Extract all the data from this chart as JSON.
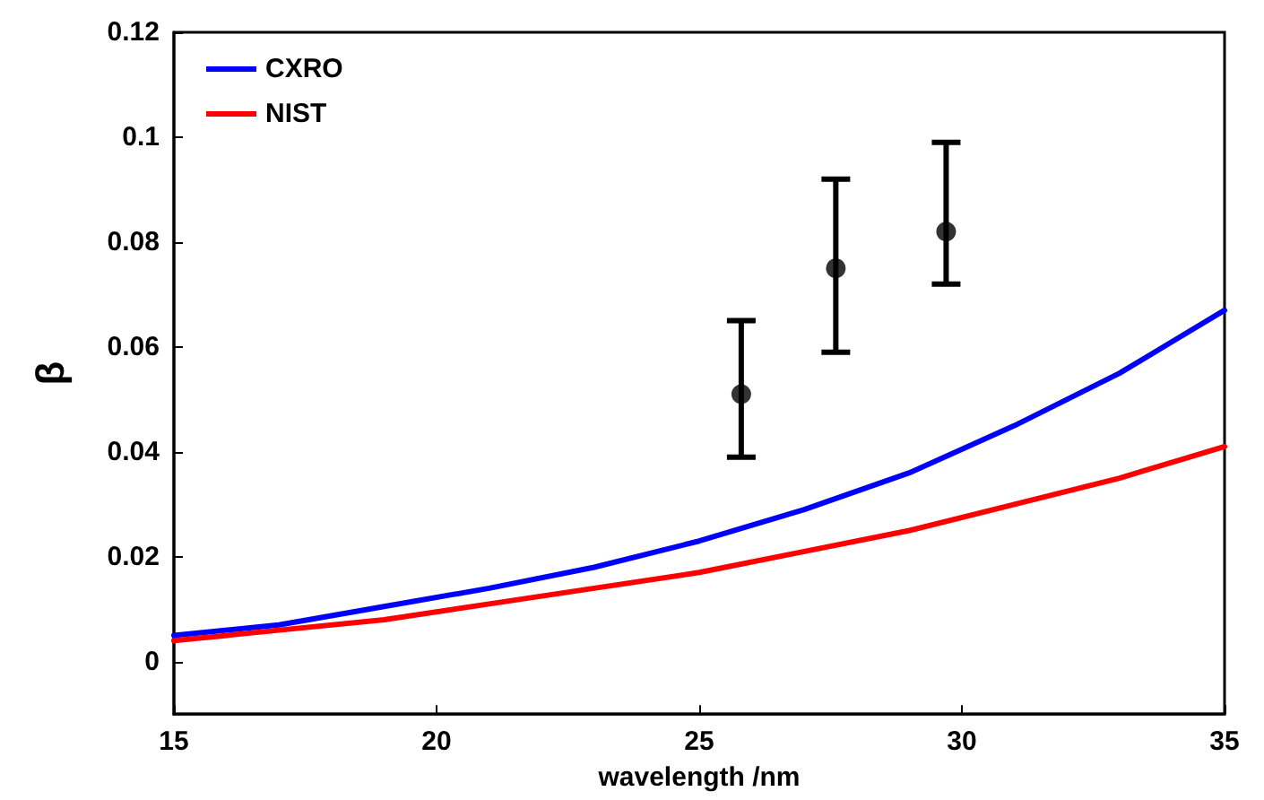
{
  "chart_data": {
    "type": "line",
    "xlabel": "wavelength /nm",
    "ylabel": "β",
    "xlim": [
      15,
      35
    ],
    "xticks": [
      15,
      20,
      25,
      30,
      35
    ],
    "ylim": [
      -0.01,
      0.12
    ],
    "yticks": [
      0,
      0.02,
      0.04,
      0.06,
      0.08,
      0.1,
      0.12
    ],
    "grid": false,
    "legend": "top left",
    "marker": "none",
    "line_style": "solid",
    "series": [
      {
        "name": "CXRO",
        "color": "#0000ff",
        "x": [
          15,
          17,
          19,
          21,
          23,
          25,
          27,
          29,
          31,
          33,
          34,
          35
        ],
        "values": [
          0.005,
          0.007,
          0.0105,
          0.014,
          0.018,
          0.023,
          0.029,
          0.036,
          0.045,
          0.055,
          0.061,
          0.067
        ]
      },
      {
        "name": "NIST",
        "color": "#ff0000",
        "x": [
          15,
          17,
          19,
          21,
          23,
          25,
          27,
          29,
          31,
          33,
          35
        ],
        "values": [
          0.004,
          0.006,
          0.008,
          0.011,
          0.014,
          0.017,
          0.021,
          0.025,
          0.03,
          0.035,
          0.041
        ]
      },
      {
        "type": "scatter",
        "marker": "circle",
        "color": "#000000",
        "x": [
          25.8,
          27.6,
          29.7
        ],
        "values": [
          0.051,
          0.075,
          0.082
        ],
        "errors": [
          [
            0.039,
            0.065
          ],
          [
            0.059,
            0.092
          ],
          [
            0.072,
            0.099
          ]
        ]
      }
    ]
  }
}
